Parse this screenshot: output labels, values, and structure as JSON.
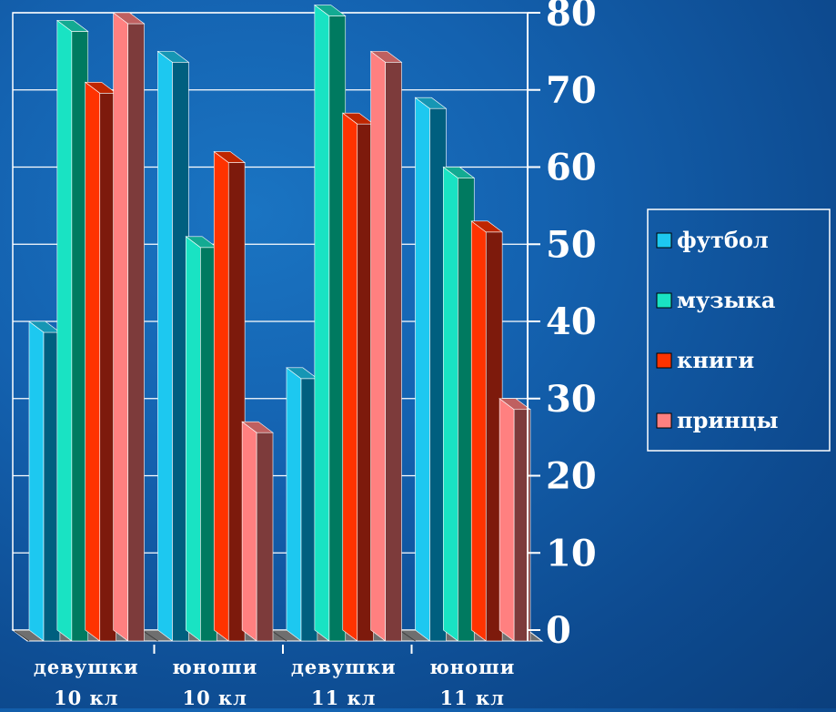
{
  "chart_data": {
    "type": "bar",
    "title": "",
    "xlabel": "",
    "ylabel": "",
    "ylim": [
      0,
      80
    ],
    "yticks": [
      0,
      10,
      20,
      30,
      40,
      50,
      60,
      70,
      80
    ],
    "y_axis_side": "right",
    "grid": true,
    "three_d": true,
    "legend_position": "right",
    "categories": [
      {
        "line1": "девушки",
        "line2": "10 кл"
      },
      {
        "line1": "юноши",
        "line2": "10 кл"
      },
      {
        "line1": "девушки",
        "line2": "11 кл"
      },
      {
        "line1": "юноши",
        "line2": "11 кл"
      }
    ],
    "series": [
      {
        "name": "футбол",
        "values": [
          40,
          75,
          34,
          69
        ],
        "color": "#1dc8f0",
        "front": "#005f7f"
      },
      {
        "name": "музыка",
        "values": [
          79,
          51,
          81,
          60
        ],
        "color": "#19e3c3",
        "front": "#007a60"
      },
      {
        "name": "книги",
        "values": [
          71,
          62,
          67,
          53
        ],
        "color": "#ff3300",
        "front": "#7d1a0c"
      },
      {
        "name": "принцы",
        "values": [
          80,
          27,
          75,
          30
        ],
        "color": "#ff8080",
        "front": "#7d3b3b"
      }
    ]
  }
}
